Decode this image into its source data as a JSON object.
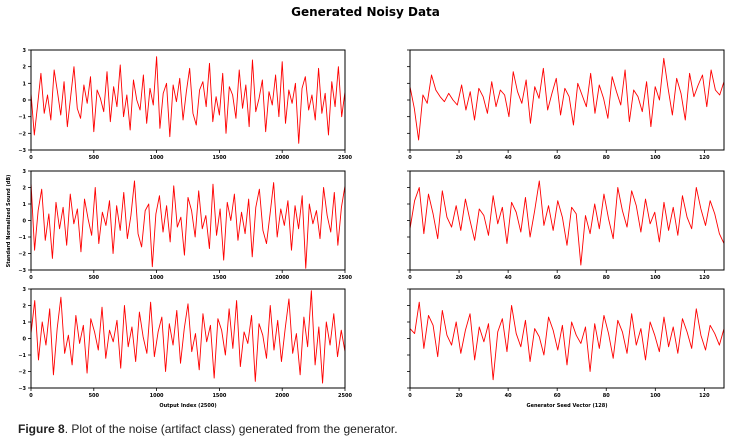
{
  "figure": {
    "title": "Generated Noisy Data",
    "caption_label": "Figure 8",
    "caption_text": ". Plot of the noise (artifact class) generated from the generator."
  },
  "axes": {
    "left_ylabel": "Standard Normalized Sound (dB)",
    "left_xlabel": "Output Index (2500)",
    "right_xlabel": "Generator Seed Vector (128)"
  },
  "chart_data": [
    {
      "type": "line",
      "panel": "row1-left",
      "xlim": [
        0,
        2500
      ],
      "ylim": [
        -3,
        3
      ],
      "xticks": [
        0,
        500,
        1000,
        1500,
        2000,
        2500
      ],
      "yticks": [
        -3,
        -2,
        -1,
        0,
        1,
        2,
        3
      ],
      "tick_labels_y": [
        "−3",
        "−2",
        "−1",
        "0",
        "1",
        "2",
        "3"
      ],
      "color": "#ff0000",
      "y": [
        0.4,
        -2.1,
        -0.3,
        1.6,
        -0.8,
        0.3,
        -1.2,
        1.8,
        0.5,
        -0.9,
        1.1,
        -1.6,
        0.2,
        2.0,
        -0.5,
        -1.1,
        0.9,
        -0.2,
        1.4,
        -1.9,
        0.6,
        0.1,
        -0.7,
        1.7,
        -1.3,
        0.8,
        -0.4,
        2.1,
        -1.0,
        0.3,
        -1.8,
        1.2,
        0.0,
        -0.6,
        1.5,
        -1.4,
        0.7,
        -0.3,
        2.6,
        -1.7,
        0.4,
        1.0,
        -2.2,
        0.9,
        -0.1,
        1.3,
        -1.2,
        0.5,
        1.9,
        -0.8,
        -1.5,
        0.6,
        1.1,
        -0.4,
        2.2,
        -1.3,
        0.2,
        -0.9,
        1.6,
        -2.0,
        0.8,
        0.3,
        -1.1,
        1.8,
        -0.5,
        0.9,
        -1.6,
        2.4,
        -0.7,
        0.1,
        1.2,
        -1.9,
        0.5,
        -0.3,
        1.5,
        -1.0,
        2.3,
        -1.4,
        0.6,
        -0.2,
        1.0,
        -2.6,
        0.7,
        1.4,
        -0.6,
        0.3,
        -1.2,
        1.9,
        -0.8,
        0.4,
        -2.1,
        1.1,
        -0.4,
        2.0,
        -1.0,
        0.5
      ]
    },
    {
      "type": "line",
      "panel": "row1-right",
      "xlim": [
        0,
        128
      ],
      "ylim": [
        -3,
        3
      ],
      "xticks": [
        0,
        20,
        40,
        60,
        80,
        100,
        120
      ],
      "color": "#ff0000",
      "y": [
        0.8,
        -0.5,
        -2.4,
        0.3,
        -0.2,
        1.5,
        0.6,
        0.2,
        -0.1,
        0.4,
        0.0,
        -0.3,
        0.9,
        -0.6,
        0.5,
        -1.2,
        0.7,
        0.2,
        -0.8,
        1.1,
        -0.4,
        0.6,
        0.3,
        -1.0,
        1.7,
        0.5,
        -0.2,
        1.2,
        -1.4,
        0.8,
        0.1,
        1.9,
        -0.6,
        0.4,
        1.3,
        -0.9,
        0.7,
        0.2,
        -1.5,
        1.0,
        0.3,
        -0.4,
        1.6,
        -0.8,
        0.9,
        0.1,
        -1.1,
        1.4,
        0.5,
        -0.3,
        1.8,
        -1.3,
        0.6,
        0.2,
        -0.7,
        1.1,
        -1.6,
        0.8,
        0.0,
        2.5,
        0.7,
        -0.9,
        1.3,
        0.4,
        -1.2,
        1.6,
        0.2,
        0.9,
        1.5,
        -0.4,
        1.8,
        0.6,
        0.3,
        1.1
      ]
    },
    {
      "type": "line",
      "panel": "row2-left",
      "xlim": [
        0,
        2500
      ],
      "ylim": [
        -3,
        3
      ],
      "xticks": [
        0,
        500,
        1000,
        1500,
        2000,
        2500
      ],
      "yticks": [
        -3,
        -2,
        -1,
        0,
        1,
        2,
        3
      ],
      "tick_labels_y": [
        "−3",
        "−2",
        "−1",
        "0",
        "1",
        "2",
        "3"
      ],
      "color": "#ff0000",
      "y": [
        2.3,
        -1.8,
        0.6,
        1.9,
        -1.2,
        0.4,
        -2.3,
        1.1,
        -0.5,
        0.8,
        -1.5,
        1.6,
        -0.2,
        0.7,
        -1.9,
        1.3,
        0.1,
        -0.9,
        2.0,
        -1.4,
        0.5,
        -0.3,
        1.2,
        -2.0,
        0.9,
        -0.6,
        1.7,
        -1.1,
        0.3,
        2.4,
        -0.8,
        -1.6,
        0.6,
        1.0,
        -2.8,
        0.4,
        1.5,
        -0.7,
        0.9,
        -1.3,
        2.1,
        -0.4,
        0.2,
        -2.1,
        1.4,
        0.6,
        -1.0,
        1.8,
        -0.5,
        0.3,
        -1.7,
        2.2,
        -0.9,
        0.7,
        -2.4,
        1.1,
        0.0,
        1.6,
        -1.2,
        0.5,
        -0.8,
        1.3,
        -2.2,
        0.8,
        1.9,
        -0.6,
        -1.4,
        0.4,
        2.3,
        -1.0,
        0.7,
        -0.3,
        1.2,
        -1.8,
        0.9,
        -0.5,
        1.5,
        -2.9,
        1.0,
        -0.2,
        0.6,
        -1.1,
        2.0,
        0.3,
        -0.7,
        1.7,
        -1.5,
        0.8,
        2.1
      ]
    },
    {
      "type": "line",
      "panel": "row2-right",
      "xlim": [
        0,
        128
      ],
      "ylim": [
        -3,
        3
      ],
      "xticks": [
        0,
        20,
        40,
        60,
        80,
        100,
        120
      ],
      "color": "#ff0000",
      "y": [
        -0.5,
        1.2,
        2.0,
        -0.8,
        1.6,
        0.4,
        -1.1,
        1.8,
        0.2,
        -0.4,
        0.9,
        -0.6,
        1.3,
        0.0,
        -1.2,
        0.7,
        0.3,
        -0.9,
        1.5,
        -0.2,
        0.8,
        -1.4,
        1.1,
        0.5,
        -0.7,
        1.4,
        -1.0,
        0.6,
        2.4,
        -0.3,
        0.9,
        -0.6,
        1.2,
        0.2,
        -1.5,
        0.8,
        0.4,
        -2.7,
        0.3,
        -0.8,
        1.0,
        -0.5,
        1.6,
        0.1,
        -1.1,
        2.0,
        0.6,
        -0.4,
        1.8,
        0.9,
        -0.7,
        1.3,
        -0.2,
        0.5,
        -1.3,
        1.1,
        -0.6,
        0.8,
        -0.9,
        1.5,
        0.2,
        -0.5,
        2.0,
        0.7,
        -0.3,
        1.2,
        0.4,
        -0.8,
        -1.4
      ]
    },
    {
      "type": "line",
      "panel": "row3-left",
      "xlim": [
        0,
        2500
      ],
      "ylim": [
        -3,
        3
      ],
      "xticks": [
        0,
        500,
        1000,
        1500,
        2000,
        2500
      ],
      "yticks": [
        -3,
        -2,
        -1,
        0,
        1,
        2,
        3
      ],
      "tick_labels_y": [
        "−3",
        "−2",
        "−1",
        "0",
        "1",
        "2",
        "3"
      ],
      "color": "#ff0000",
      "y": [
        0.3,
        2.3,
        -1.3,
        1.0,
        -0.4,
        1.8,
        -2.2,
        0.6,
        2.5,
        -0.9,
        0.2,
        -1.6,
        1.4,
        -0.3,
        0.8,
        -2.1,
        1.2,
        0.4,
        -0.7,
        1.9,
        -1.2,
        0.5,
        -0.2,
        1.1,
        -1.8,
        2.0,
        -0.5,
        0.7,
        -1.4,
        1.6,
        0.1,
        -0.9,
        2.2,
        -1.1,
        0.4,
        1.3,
        -2.0,
        0.9,
        -0.4,
        1.7,
        -1.5,
        0.6,
        2.1,
        -0.8,
        0.3,
        -1.9,
        1.5,
        -0.2,
        0.8,
        -2.4,
        1.2,
        0.5,
        -1.0,
        1.8,
        -0.6,
        2.3,
        -1.7,
        0.4,
        -0.3,
        1.4,
        -2.6,
        0.9,
        0.2,
        -1.2,
        2.0,
        -0.7,
        1.1,
        -1.4,
        0.6,
        2.4,
        -0.9,
        0.3,
        -2.2,
        1.3,
        -0.5,
        2.9,
        -1.6,
        0.7,
        -2.7,
        1.0,
        -0.4,
        1.5,
        -1.1,
        0.5,
        -0.8
      ]
    },
    {
      "type": "line",
      "panel": "row3-right",
      "xlim": [
        0,
        128
      ],
      "ylim": [
        -3,
        3
      ],
      "xticks": [
        0,
        20,
        40,
        60,
        80,
        100,
        120
      ],
      "color": "#ff0000",
      "y": [
        0.6,
        0.3,
        2.2,
        -0.6,
        1.4,
        0.8,
        -1.1,
        1.7,
        0.2,
        -0.4,
        1.0,
        -0.9,
        0.5,
        1.5,
        -1.3,
        0.7,
        -0.2,
        0.9,
        -2.5,
        0.4,
        1.2,
        -0.8,
        2.0,
        0.3,
        -0.5,
        1.1,
        -1.4,
        0.6,
        0.1,
        -1.0,
        1.3,
        0.5,
        -0.7,
        0.8,
        -1.6,
        1.0,
        0.2,
        -0.3,
        0.7,
        -2.0,
        0.9,
        -0.6,
        1.4,
        0.3,
        -1.2,
        1.1,
        0.4,
        -0.9,
        1.5,
        -0.4,
        0.6,
        -1.3,
        1.0,
        0.2,
        -0.8,
        1.3,
        -0.5,
        0.7,
        -0.9,
        1.2,
        0.4,
        -0.6,
        1.8,
        0.2,
        -0.7,
        0.8,
        0.3,
        -0.4,
        0.6
      ]
    }
  ]
}
